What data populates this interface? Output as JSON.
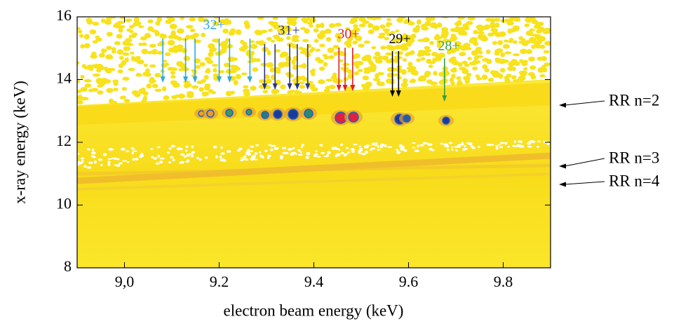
{
  "chart_data": {
    "type": "heatmap",
    "xlabel": "electron beam energy (keV)",
    "ylabel": "x-ray energy (keV)",
    "xlim": [
      8.9,
      9.9
    ],
    "ylim": [
      8,
      16
    ],
    "xticks": [
      {
        "value": 9.0,
        "label": "9,0"
      },
      9.2,
      9.4,
      9.6,
      9.8
    ],
    "yticks": [
      8,
      10,
      12,
      14,
      16
    ],
    "annotations": [
      {
        "label": "32+",
        "color": "#2ea9dd",
        "arrows_x": [
          9.081,
          9.129,
          9.149,
          9.2,
          9.222,
          9.265
        ]
      },
      {
        "label": "31+",
        "color": "#2c3580",
        "arrows_x": [
          9.296,
          9.318,
          9.349,
          9.365,
          9.387
        ]
      },
      {
        "label": "30+",
        "color": "#e0202a",
        "arrows_x": [
          9.453,
          9.466,
          9.482
        ]
      },
      {
        "label": "29+",
        "color": "#000000",
        "arrows_x": [
          9.566,
          9.579
        ]
      },
      {
        "label": "28+",
        "color": "#3aa040",
        "arrows_x": [
          9.676
        ]
      }
    ],
    "band_labels": [
      "RR n=2",
      "RR n=3",
      "RR n=4"
    ]
  }
}
